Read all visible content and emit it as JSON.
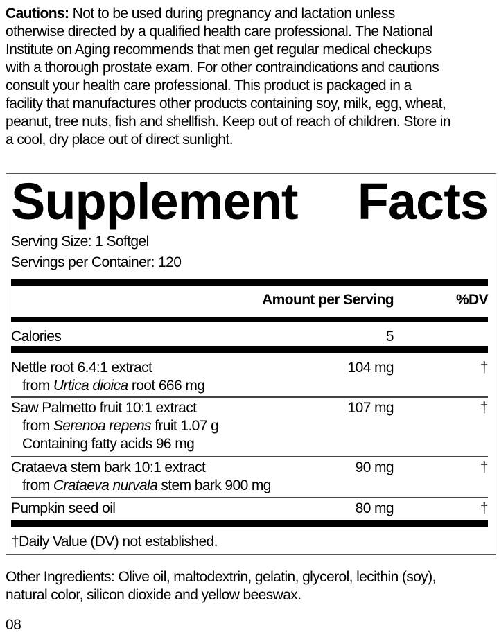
{
  "cautions": {
    "label": "Cautions:",
    "lines": [
      " Not to be used during pregnancy and lactation unless",
      "otherwise directed by a qualified health care professional. The National",
      "Institute on Aging recommends that men get regular medical checkups",
      "with a thorough prostate exam. For other contraindications and cautions",
      "consult your health care professional. This product is packaged in a",
      "facility that manufactures other products containing soy, milk, egg, wheat,",
      "peanut, tree nuts, fish and shellfish. Keep out of reach of children. Store in",
      "a cool, dry place out of direct sunlight."
    ]
  },
  "facts": {
    "title_word1": "Supplement",
    "title_word2": "Facts",
    "serving_size": "Serving Size: 1 Softgel",
    "servings_per_container": "Servings per Container: 120",
    "header_amount": "Amount per Serving",
    "header_dv": "%DV",
    "calories": {
      "label": "Calories",
      "amount": "5"
    },
    "rows": [
      {
        "name": "Nettle root 6.4:1 extract",
        "sub1_pre": "from ",
        "sub1_italic": "Urtica dioica",
        "sub1_post": " root 666 mg",
        "amount": "104 mg",
        "dv": "†"
      },
      {
        "name": "Saw Palmetto fruit 10:1 extract",
        "sub1_pre": "from ",
        "sub1_italic": "Serenoa repens",
        "sub1_post": " fruit 1.07 g",
        "sub2": "Containing fatty acids 96 mg",
        "amount": "107 mg",
        "dv": "†"
      },
      {
        "name": "Crataeva stem bark 10:1 extract",
        "sub1_pre": "from ",
        "sub1_italic": "Crataeva nurvala",
        "sub1_post": " stem bark 900 mg",
        "amount": "90 mg",
        "dv": "†"
      },
      {
        "name": "Pumpkin seed oil",
        "amount": "80 mg",
        "dv": "†"
      }
    ],
    "footnote": "†Daily Value (DV) not established."
  },
  "other_ingredients": {
    "line1": "Other Ingredients: Olive oil, maltodextrin, gelatin, glycerol, lecithin (soy),",
    "line2": "natural color, silicon dioxide and yellow beeswax."
  },
  "code": "08"
}
